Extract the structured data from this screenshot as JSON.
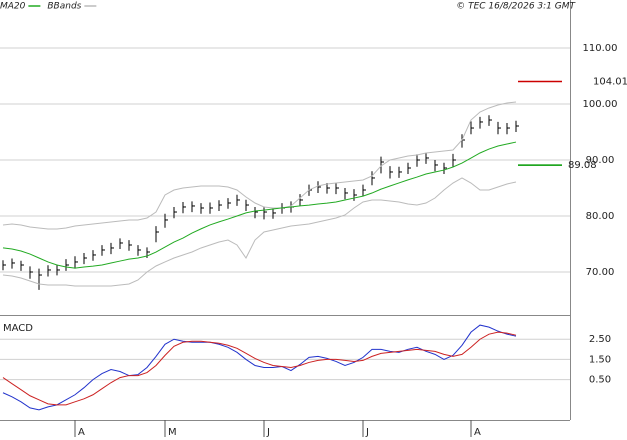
{
  "header": {
    "legend": [
      {
        "name": "MA20",
        "color": "#22aa22"
      },
      {
        "name": "BBands",
        "color": "#bbbbbb"
      }
    ],
    "copyright": "© TEC 16/8/2026 3:1 GMT"
  },
  "chart_data": [
    {
      "type": "ohlc",
      "ylim": [
        62.32,
        118.57
      ],
      "yticks": [
        {
          "value": 110,
          "label": "110.00"
        },
        {
          "value": 100,
          "label": "100.00"
        },
        {
          "value": 90,
          "label": "90.00"
        },
        {
          "value": 80,
          "label": "80.00"
        },
        {
          "value": 70,
          "label": "70.00"
        }
      ],
      "grid": true,
      "bar_color": "#000000",
      "high": [
        72.1,
        72.4,
        72.0,
        71.0,
        70.6,
        71.2,
        71.3,
        72.3,
        72.8,
        73.4,
        73.9,
        74.8,
        75.2,
        76.0,
        75.7,
        74.8,
        74.4,
        78.2,
        80.4,
        81.6,
        82.5,
        82.6,
        82.3,
        82.4,
        82.8,
        83.2,
        83.8,
        82.9,
        81.6,
        81.7,
        81.5,
        82.3,
        82.6,
        83.9,
        85.6,
        86.2,
        85.9,
        85.9,
        85.0,
        84.8,
        85.6,
        88.0,
        90.6,
        88.9,
        88.8,
        89.5,
        91.0,
        91.3,
        90.0,
        89.5,
        91.1,
        94.6,
        96.9,
        97.7,
        98.0,
        96.8,
        96.6,
        97.0
      ],
      "low": [
        70.3,
        70.6,
        70.2,
        68.8,
        66.8,
        69.2,
        69.4,
        70.2,
        70.6,
        71.4,
        72.0,
        72.9,
        73.2,
        74.1,
        73.8,
        72.9,
        72.5,
        75.3,
        77.9,
        79.6,
        80.5,
        80.7,
        80.4,
        80.4,
        80.9,
        81.3,
        81.8,
        80.9,
        79.6,
        79.4,
        79.5,
        80.4,
        80.6,
        81.8,
        83.6,
        84.1,
        84.0,
        83.9,
        83.0,
        82.7,
        83.5,
        85.5,
        87.6,
        86.7,
        86.8,
        87.5,
        88.8,
        89.3,
        88.0,
        87.5,
        88.8,
        92.2,
        94.6,
        95.6,
        96.1,
        94.6,
        94.6,
        95.0
      ],
      "close": [
        71.25,
        71.61,
        71.25,
        70.0,
        69.46,
        70.36,
        70.36,
        71.25,
        71.79,
        72.5,
        73.04,
        73.93,
        74.29,
        75.18,
        74.82,
        73.93,
        73.57,
        77.14,
        79.29,
        80.71,
        81.61,
        81.79,
        81.43,
        81.43,
        81.96,
        82.32,
        82.86,
        81.96,
        80.71,
        80.71,
        80.54,
        81.43,
        81.61,
        82.86,
        84.64,
        85.18,
        85.0,
        85.0,
        84.11,
        83.75,
        84.64,
        86.79,
        89.64,
        87.86,
        87.86,
        88.57,
        90.0,
        90.36,
        89.11,
        88.57,
        90.0,
        93.57,
        95.71,
        96.79,
        97.14,
        95.71,
        95.71,
        96.07
      ],
      "bands": {
        "color": "#bbbbbb",
        "upper": [
          78.39,
          78.57,
          78.39,
          78.04,
          77.86,
          77.68,
          77.68,
          77.86,
          78.21,
          78.39,
          78.57,
          78.75,
          78.93,
          79.11,
          79.29,
          79.29,
          79.64,
          80.71,
          83.75,
          84.64,
          85.0,
          85.18,
          85.36,
          85.36,
          85.36,
          85.18,
          84.64,
          83.39,
          82.32,
          81.61,
          81.43,
          81.43,
          81.79,
          83.21,
          84.64,
          85.36,
          85.71,
          85.89,
          86.07,
          86.25,
          86.43,
          87.14,
          88.93,
          90.0,
          90.36,
          90.71,
          90.89,
          91.25,
          91.43,
          91.61,
          91.79,
          93.57,
          97.14,
          98.57,
          99.29,
          99.82,
          100.18,
          100.36
        ],
        "lower": [
          69.46,
          69.29,
          68.93,
          68.39,
          67.86,
          67.68,
          67.68,
          67.68,
          67.5,
          67.5,
          67.5,
          67.5,
          67.5,
          67.68,
          67.86,
          68.57,
          70.0,
          71.07,
          71.79,
          72.5,
          73.04,
          73.57,
          74.29,
          74.82,
          75.36,
          75.71,
          74.82,
          72.5,
          75.71,
          77.14,
          77.5,
          77.86,
          78.21,
          78.39,
          78.57,
          78.93,
          79.29,
          79.64,
          80.18,
          81.43,
          82.5,
          82.86,
          82.86,
          82.68,
          82.5,
          82.14,
          81.96,
          82.32,
          83.21,
          84.64,
          85.89,
          86.79,
          85.89,
          84.64,
          84.64,
          85.18,
          85.71,
          86.07
        ]
      },
      "series": [
        {
          "color": "#22aa22",
          "values": [
            74.3,
            74.1,
            73.75,
            73.2,
            72.5,
            71.8,
            71.25,
            70.9,
            70.7,
            70.9,
            71.05,
            71.25,
            71.6,
            71.95,
            72.3,
            72.5,
            72.85,
            73.55,
            74.45,
            75.35,
            76.05,
            76.95,
            77.7,
            78.4,
            78.95,
            79.45,
            80.0,
            80.55,
            80.9,
            81.05,
            81.25,
            81.45,
            81.6,
            81.8,
            81.95,
            82.15,
            82.3,
            82.5,
            82.85,
            83.2,
            83.55,
            84.1,
            84.8,
            85.35,
            85.9,
            86.45,
            86.95,
            87.5,
            87.85,
            88.2,
            88.75,
            89.45,
            90.35,
            91.25,
            91.95,
            92.5,
            92.85,
            93.2
          ]
        }
      ],
      "markers": [
        {
          "value": 104.01,
          "label": "104.01",
          "color": "#cc0000"
        },
        {
          "value": 89.08,
          "label": "89.08",
          "color": "#009900"
        }
      ]
    },
    {
      "type": "line",
      "title": "MACD",
      "categories": [
        null,
        null,
        null,
        null,
        null,
        null,
        null,
        null,
        "A",
        null,
        null,
        null,
        null,
        null,
        null,
        null,
        null,
        null,
        "M",
        null,
        null,
        null,
        null,
        null,
        null,
        null,
        null,
        null,
        null,
        "J",
        null,
        null,
        null,
        null,
        null,
        null,
        null,
        null,
        null,
        null,
        "J",
        null,
        null,
        null,
        null,
        null,
        null,
        null,
        null,
        null,
        null,
        null,
        "A",
        null,
        null,
        null,
        null,
        null
      ],
      "ylim": [
        -1.5,
        3.65
      ],
      "yticks": [
        {
          "value": 2.5,
          "label": "2.50"
        },
        {
          "value": 1.5,
          "label": "1.50"
        },
        {
          "value": 0.5,
          "label": "0.50"
        }
      ],
      "grid": true,
      "series": [
        {
          "color": "#2233cc",
          "values": [
            -0.15,
            -0.35,
            -0.6,
            -0.9,
            -1.0,
            -0.85,
            -0.75,
            -0.5,
            -0.25,
            0.1,
            0.5,
            0.8,
            1.0,
            0.9,
            0.7,
            0.75,
            1.1,
            1.65,
            2.25,
            2.5,
            2.4,
            2.35,
            2.35,
            2.35,
            2.25,
            2.1,
            1.85,
            1.5,
            1.2,
            1.1,
            1.1,
            1.15,
            0.95,
            1.25,
            1.6,
            1.65,
            1.55,
            1.4,
            1.2,
            1.35,
            1.6,
            2.0,
            2.0,
            1.9,
            1.85,
            2.0,
            2.1,
            1.9,
            1.75,
            1.5,
            1.7,
            2.2,
            2.85,
            3.2,
            3.1,
            2.9,
            2.75,
            2.65
          ]
        },
        {
          "color": "#cc2222",
          "values": [
            0.6,
            0.3,
            0.0,
            -0.3,
            -0.5,
            -0.7,
            -0.75,
            -0.75,
            -0.6,
            -0.45,
            -0.25,
            0.05,
            0.35,
            0.6,
            0.7,
            0.7,
            0.85,
            1.2,
            1.7,
            2.15,
            2.35,
            2.4,
            2.4,
            2.35,
            2.3,
            2.2,
            2.05,
            1.8,
            1.55,
            1.35,
            1.2,
            1.15,
            1.1,
            1.2,
            1.35,
            1.45,
            1.5,
            1.5,
            1.45,
            1.4,
            1.45,
            1.65,
            1.8,
            1.85,
            1.9,
            1.95,
            2.0,
            1.95,
            1.9,
            1.75,
            1.65,
            1.75,
            2.1,
            2.5,
            2.75,
            2.85,
            2.8,
            2.7
          ]
        }
      ]
    }
  ]
}
